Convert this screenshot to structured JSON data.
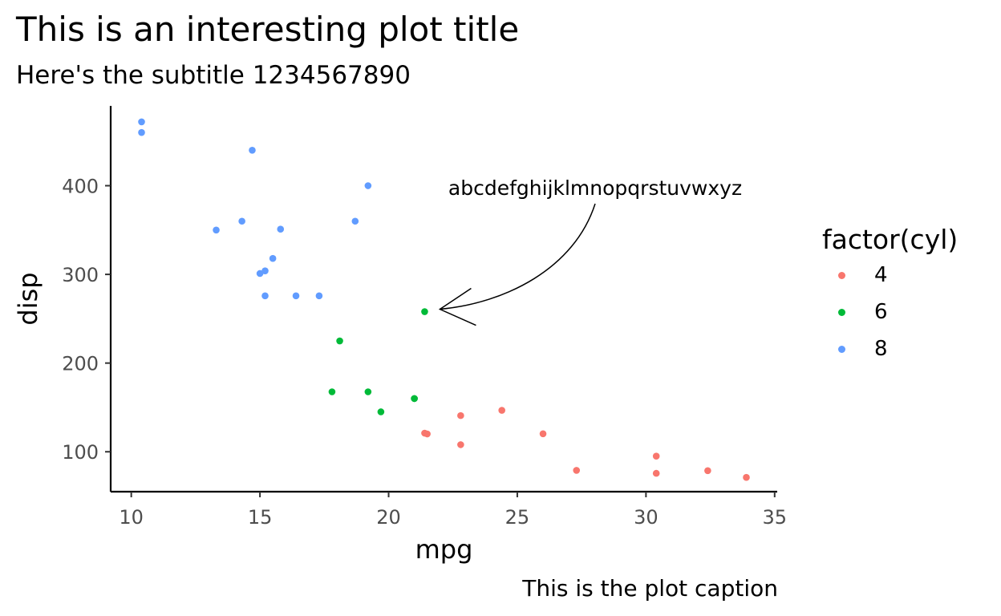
{
  "title": "This is an interesting plot title",
  "subtitle": "Here's the subtitle 1234567890",
  "caption": "This is the plot caption",
  "chart_data": {
    "type": "scatter",
    "xlabel": "mpg",
    "ylabel": "disp",
    "xlim": [
      9.2,
      35.1
    ],
    "ylim": [
      55.0,
      490.0
    ],
    "xticks": [
      10,
      15,
      20,
      25,
      30,
      35
    ],
    "yticks": [
      100,
      200,
      300,
      400
    ],
    "grid": false,
    "legend": {
      "title": "factor(cyl)",
      "position": "right"
    },
    "series": [
      {
        "name": "4",
        "color": "#F8766D",
        "points": [
          [
            22.8,
            108
          ],
          [
            24.4,
            146.7
          ],
          [
            22.8,
            140.8
          ],
          [
            32.4,
            78.7
          ],
          [
            30.4,
            75.7
          ],
          [
            33.9,
            71.1
          ],
          [
            21.5,
            120.1
          ],
          [
            27.3,
            79
          ],
          [
            26,
            120.3
          ],
          [
            30.4,
            95.1
          ],
          [
            21.4,
            121
          ]
        ]
      },
      {
        "name": "6",
        "color": "#00BA38",
        "points": [
          [
            21,
            160
          ],
          [
            21,
            160
          ],
          [
            21.4,
            258
          ],
          [
            18.1,
            225
          ],
          [
            19.2,
            167.6
          ],
          [
            17.8,
            167.6
          ],
          [
            19.7,
            145
          ]
        ]
      },
      {
        "name": "8",
        "color": "#619CFF",
        "points": [
          [
            18.7,
            360
          ],
          [
            14.3,
            360
          ],
          [
            16.4,
            275.8
          ],
          [
            17.3,
            275.8
          ],
          [
            15.2,
            275.8
          ],
          [
            10.4,
            472
          ],
          [
            10.4,
            460
          ],
          [
            14.7,
            440
          ],
          [
            15.5,
            318
          ],
          [
            15.2,
            304
          ],
          [
            13.3,
            350
          ],
          [
            19.2,
            400
          ],
          [
            15.8,
            351
          ],
          [
            15,
            301
          ]
        ]
      }
    ],
    "annotation": {
      "text": "abcdefghijklmnopqrstuvwxyz",
      "points_to": [
        21.4,
        258
      ]
    }
  }
}
